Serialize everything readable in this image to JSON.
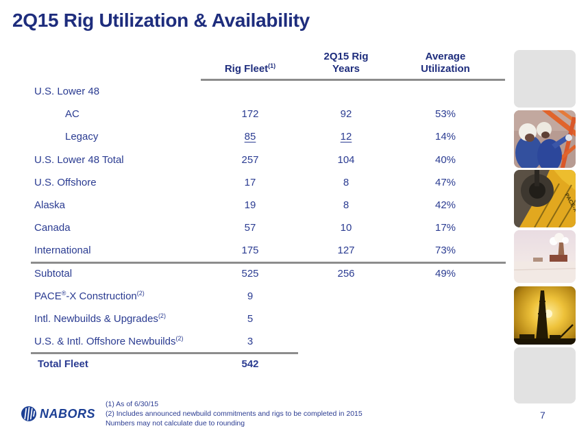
{
  "slide": {
    "title": "2Q15 Rig Utilization & Availability",
    "page_number": "7"
  },
  "table": {
    "columns": [
      "Rig Fleet(1)",
      "2Q15 Rig\nYears",
      "Average\nUtilization"
    ],
    "rows": [
      {
        "label": "U.S. Lower 48",
        "indent": 0,
        "values": [
          "",
          "",
          ""
        ]
      },
      {
        "label": "AC",
        "indent": 1,
        "values": [
          "172",
          "92",
          "53%"
        ]
      },
      {
        "label": "Legacy",
        "indent": 1,
        "values": [
          "85",
          "12",
          "14%"
        ],
        "underline_values": [
          true,
          true,
          false
        ]
      },
      {
        "label": "U.S. Lower 48 Total",
        "indent": 0,
        "values": [
          "257",
          "104",
          "40%"
        ]
      },
      {
        "label": "U.S. Offshore",
        "indent": 0,
        "values": [
          "17",
          "8",
          "47%"
        ]
      },
      {
        "label": "Alaska",
        "indent": 0,
        "values": [
          "19",
          "8",
          "42%"
        ]
      },
      {
        "label": "Canada",
        "indent": 0,
        "values": [
          "57",
          "10",
          "17%"
        ]
      },
      {
        "label": "International",
        "indent": 0,
        "values": [
          "175",
          "127",
          "73%"
        ],
        "divider_after": "full"
      },
      {
        "label": "Subtotal",
        "indent": 0,
        "values": [
          "525",
          "256",
          "49%"
        ]
      },
      {
        "label": "PACE®-X Construction(2)",
        "indent": 0,
        "values": [
          "9",
          "",
          ""
        ]
      },
      {
        "label": "Intl. Newbuilds & Upgrades(2)",
        "indent": 0,
        "values": [
          "5",
          "",
          ""
        ]
      },
      {
        "label": "U.S. & Intl. Offshore Newbuilds(2)",
        "indent": 0,
        "values": [
          "3",
          "",
          ""
        ],
        "divider_after": "partial"
      },
      {
        "label": "Total Fleet",
        "indent": 0,
        "bold": true,
        "values": [
          "542",
          "",
          ""
        ]
      }
    ]
  },
  "footer": {
    "logo_text": "NABORS",
    "footnotes": [
      "(1)  As of 6/30/15",
      "(2)  Includes announced newbuild commitments and rigs to be completed in 2015",
      "Numbers may not calculate due to rounding"
    ]
  },
  "sidebar_images": [
    {
      "name": "placeholder-tile-top",
      "type": "gray"
    },
    {
      "name": "rig-workers-photo",
      "type": "workers"
    },
    {
      "name": "pace-x-rig-floor-photo",
      "type": "rigfloor"
    },
    {
      "name": "arctic-rig-photo",
      "type": "arctic"
    },
    {
      "name": "sunset-derrick-photo",
      "type": "sunset"
    },
    {
      "name": "placeholder-tile-bottom",
      "type": "gray"
    }
  ],
  "colors": {
    "title": "#1e2d7d",
    "table_text": "#2a3b91",
    "divider": "#8c8c8c",
    "logo_blue": "#1c3f94"
  }
}
